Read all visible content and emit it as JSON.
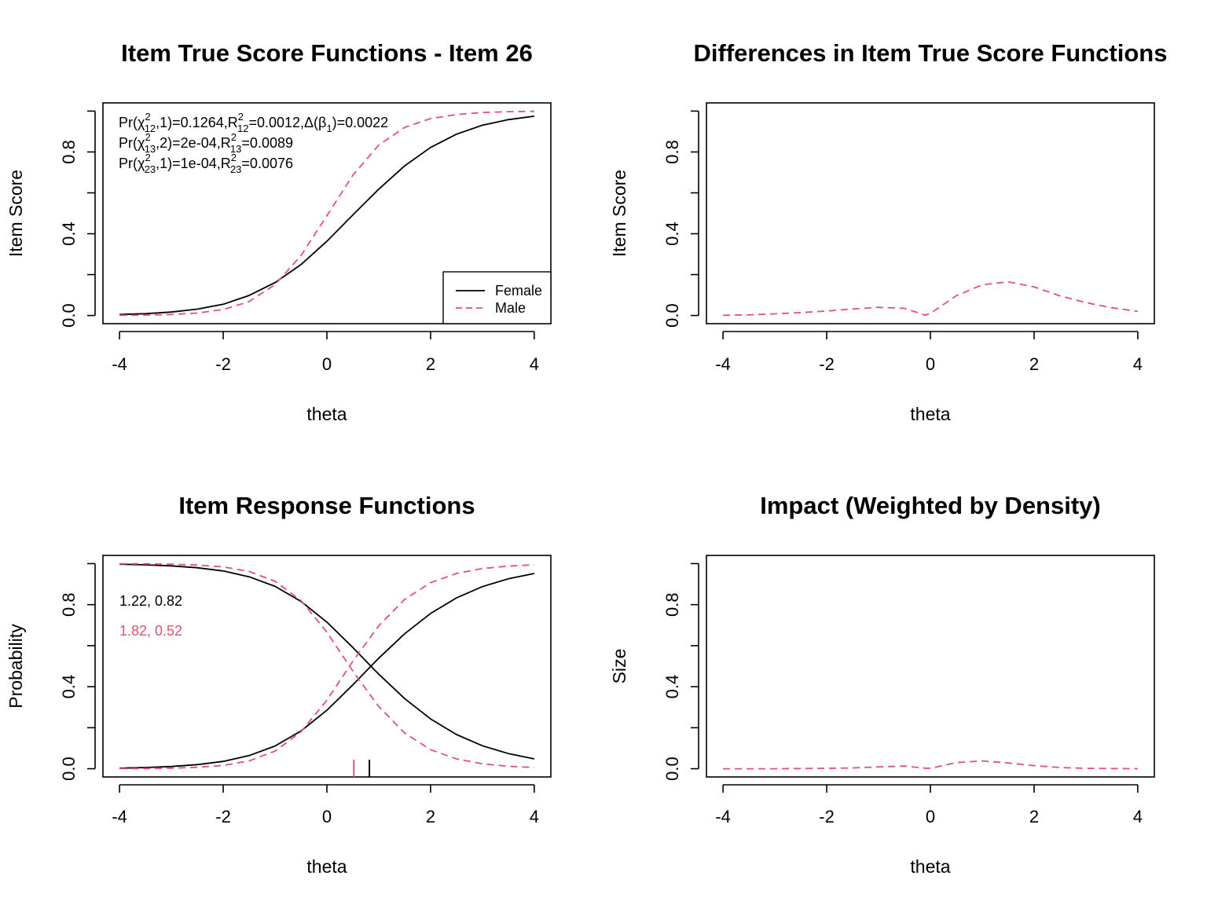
{
  "colors": {
    "female": "#000000",
    "male": "#DF536B",
    "axis": "#000000"
  },
  "chart_data": [
    {
      "panel": "top-left",
      "type": "line",
      "title": "Item True Score Functions - Item 26",
      "xlabel": "theta",
      "ylabel": "Item Score",
      "xlim": [
        -4,
        4
      ],
      "ylim": [
        0,
        1
      ],
      "xticks": [
        -4,
        -2,
        0,
        2,
        4
      ],
      "yticks": [
        0,
        0.2,
        0.4,
        0.6,
        0.8,
        1.0
      ],
      "ytick_labels": [
        "0.0",
        "",
        "0.4",
        "",
        "0.8",
        ""
      ],
      "stats_lines": [
        {
          "parts": [
            {
              "t": "Pr("
            },
            {
              "t": "χ"
            },
            {
              "sup": "2",
              "sub": "12"
            },
            {
              "t": ",1)=0.1264,R"
            },
            {
              "sup": "2",
              "sub": "12"
            },
            {
              "t": "=0.0012,Δ(β"
            },
            {
              "sub": "1"
            },
            {
              "t": ")=0.0022"
            }
          ]
        },
        {
          "parts": [
            {
              "t": "Pr("
            },
            {
              "t": "χ"
            },
            {
              "sup": "2",
              "sub": "13"
            },
            {
              "t": ",2)=2e-04,R"
            },
            {
              "sup": "2",
              "sub": "13"
            },
            {
              "t": "=0.0089"
            }
          ]
        },
        {
          "parts": [
            {
              "t": "Pr("
            },
            {
              "t": "χ"
            },
            {
              "sup": "2",
              "sub": "23"
            },
            {
              "t": ",1)=1e-04,R"
            },
            {
              "sup": "2",
              "sub": "23"
            },
            {
              "t": "=0.0076"
            }
          ]
        }
      ],
      "legend": {
        "placement": "bottom-right",
        "entries": [
          {
            "label": "Female",
            "color": "#000000",
            "dash": "solid"
          },
          {
            "label": "Male",
            "color": "#DF536B",
            "dash": "dashed"
          }
        ]
      },
      "series": [
        {
          "name": "Female",
          "dash": "solid",
          "color": "#000000",
          "x": [
            -4,
            -3.5,
            -3,
            -2.5,
            -2,
            -1.5,
            -1,
            -0.5,
            0,
            0.5,
            1,
            1.5,
            2,
            2.5,
            3,
            3.5,
            4
          ],
          "y": [
            0.005,
            0.009,
            0.017,
            0.031,
            0.055,
            0.098,
            0.161,
            0.249,
            0.363,
            0.492,
            0.618,
            0.732,
            0.822,
            0.887,
            0.931,
            0.958,
            0.975
          ]
        },
        {
          "name": "Male",
          "dash": "dashed",
          "color": "#DF536B",
          "x": [
            -4,
            -3.5,
            -3,
            -2.5,
            -2,
            -1.5,
            -1,
            -0.5,
            0,
            0.5,
            1,
            1.5,
            2,
            2.5,
            3,
            3.5,
            4
          ],
          "y": [
            0.001,
            0.002,
            0.005,
            0.012,
            0.029,
            0.068,
            0.151,
            0.293,
            0.488,
            0.686,
            0.834,
            0.92,
            0.963,
            0.983,
            0.993,
            0.997,
            0.999
          ]
        }
      ]
    },
    {
      "panel": "top-right",
      "type": "line",
      "title": "Differences in Item True Score Functions",
      "xlabel": "theta",
      "ylabel": "Item Score",
      "xlim": [
        -4,
        4
      ],
      "ylim": [
        0,
        1
      ],
      "xticks": [
        -4,
        -2,
        0,
        2,
        4
      ],
      "yticks": [
        0,
        0.2,
        0.4,
        0.6,
        0.8,
        1.0
      ],
      "ytick_labels": [
        "0.0",
        "",
        "0.4",
        "",
        "0.8",
        ""
      ],
      "series": [
        {
          "name": "Difference",
          "dash": "dashed",
          "color": "#DF536B",
          "x": [
            -4,
            -3.5,
            -3,
            -2.5,
            -2,
            -1.5,
            -1,
            -0.5,
            -0.1,
            0,
            0.5,
            1,
            1.5,
            2,
            2.5,
            3,
            3.5,
            4
          ],
          "y": [
            0.001,
            0.003,
            0.008,
            0.014,
            0.022,
            0.032,
            0.04,
            0.035,
            0.002,
            0.01,
            0.097,
            0.15,
            0.165,
            0.14,
            0.096,
            0.063,
            0.038,
            0.02
          ]
        }
      ]
    },
    {
      "panel": "bottom-left",
      "type": "line",
      "title": "Item Response Functions",
      "xlabel": "theta",
      "ylabel": "Probability",
      "xlim": [
        -4,
        4
      ],
      "ylim": [
        0,
        1
      ],
      "xticks": [
        -4,
        -2,
        0,
        2,
        4
      ],
      "yticks": [
        0,
        0.2,
        0.4,
        0.6,
        0.8,
        1.0
      ],
      "ytick_labels": [
        "0.0",
        "",
        "0.4",
        "",
        "0.8",
        ""
      ],
      "annotations": [
        {
          "text": "1.22, 0.82",
          "color": "#000000"
        },
        {
          "text": "1.82, 0.52",
          "color": "#DF536B"
        }
      ],
      "threshold_marks": [
        {
          "x": 0.82,
          "color": "#000000"
        },
        {
          "x": 0.52,
          "color": "#DF536B"
        }
      ],
      "series": [
        {
          "name": "Female P(1)",
          "dash": "solid",
          "color": "#000000",
          "x": [
            -4,
            -3.5,
            -3,
            -2.5,
            -2,
            -1.5,
            -1,
            -0.5,
            0,
            0.5,
            1,
            1.5,
            2,
            2.5,
            3,
            3.5,
            4
          ],
          "y": [
            0.003,
            0.006,
            0.011,
            0.02,
            0.036,
            0.064,
            0.111,
            0.184,
            0.285,
            0.409,
            0.539,
            0.658,
            0.757,
            0.833,
            0.888,
            0.926,
            0.952
          ]
        },
        {
          "name": "Female P(0)",
          "dash": "solid",
          "color": "#000000",
          "x": [
            -4,
            -3.5,
            -3,
            -2.5,
            -2,
            -1.5,
            -1,
            -0.5,
            0,
            0.5,
            1,
            1.5,
            2,
            2.5,
            3,
            3.5,
            4
          ],
          "y": [
            0.997,
            0.994,
            0.989,
            0.98,
            0.964,
            0.936,
            0.889,
            0.816,
            0.715,
            0.591,
            0.461,
            0.342,
            0.243,
            0.167,
            0.112,
            0.074,
            0.048
          ]
        },
        {
          "name": "Male P(1)",
          "dash": "dashed",
          "color": "#DF536B",
          "x": [
            -4,
            -3.5,
            -3,
            -2.5,
            -2,
            -1.5,
            -1,
            -0.5,
            0,
            0.5,
            1,
            1.5,
            2,
            2.5,
            3,
            3.5,
            4
          ],
          "y": [
            0.001,
            0.001,
            0.003,
            0.007,
            0.016,
            0.038,
            0.086,
            0.18,
            0.334,
            0.524,
            0.697,
            0.826,
            0.907,
            0.952,
            0.976,
            0.988,
            0.994
          ]
        },
        {
          "name": "Male P(0)",
          "dash": "dashed",
          "color": "#DF536B",
          "x": [
            -4,
            -3.5,
            -3,
            -2.5,
            -2,
            -1.5,
            -1,
            -0.5,
            0,
            0.5,
            1,
            1.5,
            2,
            2.5,
            3,
            3.5,
            4
          ],
          "y": [
            0.999,
            0.999,
            0.997,
            0.993,
            0.984,
            0.962,
            0.914,
            0.82,
            0.666,
            0.476,
            0.303,
            0.174,
            0.093,
            0.048,
            0.024,
            0.012,
            0.006
          ]
        }
      ]
    },
    {
      "panel": "bottom-right",
      "type": "line",
      "title": "Impact (Weighted by Density)",
      "xlabel": "theta",
      "ylabel": "Size",
      "xlim": [
        -4,
        4
      ],
      "ylim": [
        0,
        1
      ],
      "xticks": [
        -4,
        -2,
        0,
        2,
        4
      ],
      "yticks": [
        0,
        0.2,
        0.4,
        0.6,
        0.8,
        1.0
      ],
      "ytick_labels": [
        "0.0",
        "",
        "0.4",
        "",
        "0.8",
        ""
      ],
      "series": [
        {
          "name": "Impact",
          "dash": "dashed",
          "color": "#DF536B",
          "x": [
            -4,
            -3.5,
            -3,
            -2.5,
            -2,
            -1.5,
            -1,
            -0.5,
            -0.1,
            0,
            0.5,
            1,
            1.5,
            2,
            2.5,
            3,
            3.5,
            4
          ],
          "y": [
            0.0,
            0.0,
            0.0,
            0.001,
            0.002,
            0.004,
            0.009,
            0.013,
            0.003,
            0.002,
            0.03,
            0.038,
            0.028,
            0.015,
            0.006,
            0.002,
            0.001,
            0.0
          ]
        }
      ]
    }
  ]
}
